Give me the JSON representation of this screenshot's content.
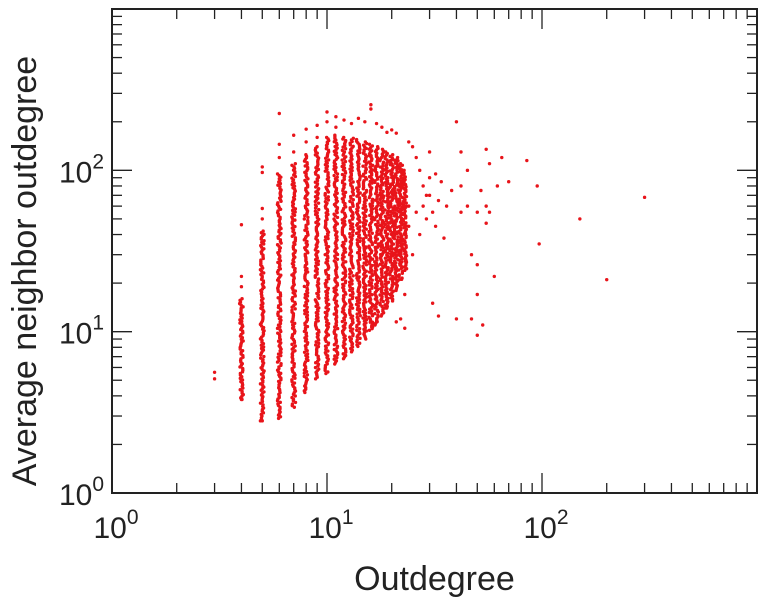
{
  "chart_data": {
    "type": "scatter",
    "title": "",
    "xlabel": "Outdegree",
    "ylabel": "Average neighbor outdegree",
    "x_scale": "log",
    "y_scale": "log",
    "xlim": [
      1,
      1000
    ],
    "ylim": [
      1,
      1000
    ],
    "grid": false,
    "marker_color": "#e8141a",
    "x_ticks": [
      {
        "value": 1,
        "base": "10",
        "exp": "0"
      },
      {
        "value": 10,
        "base": "10",
        "exp": "1"
      },
      {
        "value": 100,
        "base": "10",
        "exp": "2"
      }
    ],
    "y_ticks": [
      {
        "value": 1,
        "base": "10",
        "exp": "0"
      },
      {
        "value": 10,
        "base": "10",
        "exp": "1"
      },
      {
        "value": 100,
        "base": "10",
        "exp": "2"
      }
    ],
    "columns": [
      {
        "x": 4,
        "ymin": 3.8,
        "ymax": 16
      },
      {
        "x": 5,
        "ymin": 2.8,
        "ymax": 42
      },
      {
        "x": 6,
        "ymin": 2.9,
        "ymax": 95
      },
      {
        "x": 7,
        "ymin": 3.4,
        "ymax": 110
      },
      {
        "x": 8,
        "ymin": 4.2,
        "ymax": 125
      },
      {
        "x": 9,
        "ymin": 5.1,
        "ymax": 140
      },
      {
        "x": 10,
        "ymin": 5.5,
        "ymax": 160
      },
      {
        "x": 11,
        "ymin": 6.3,
        "ymax": 165
      },
      {
        "x": 12,
        "ymin": 6.8,
        "ymax": 160
      },
      {
        "x": 13,
        "ymin": 7.5,
        "ymax": 158
      },
      {
        "x": 14,
        "ymin": 8.1,
        "ymax": 155
      },
      {
        "x": 15,
        "ymin": 9.0,
        "ymax": 150
      },
      {
        "x": 16,
        "ymin": 10.2,
        "ymax": 145
      },
      {
        "x": 17,
        "ymin": 11.0,
        "ymax": 140
      },
      {
        "x": 18,
        "ymin": 12.5,
        "ymax": 135
      },
      {
        "x": 19,
        "ymin": 14.0,
        "ymax": 130
      },
      {
        "x": 20,
        "ymin": 15.5,
        "ymax": 125
      },
      {
        "x": 21,
        "ymin": 18.0,
        "ymax": 120
      },
      {
        "x": 22,
        "ymin": 21.0,
        "ymax": 110
      },
      {
        "x": 23,
        "ymin": 24.0,
        "ymax": 100
      }
    ],
    "points": [
      {
        "x": 3,
        "y": 5.6
      },
      {
        "x": 3,
        "y": 5.1
      },
      {
        "x": 4,
        "y": 46
      },
      {
        "x": 4,
        "y": 22
      },
      {
        "x": 4,
        "y": 19
      },
      {
        "x": 4,
        "y": 3.8
      },
      {
        "x": 5,
        "y": 105
      },
      {
        "x": 5,
        "y": 97
      },
      {
        "x": 5,
        "y": 58
      },
      {
        "x": 5,
        "y": 50
      },
      {
        "x": 5,
        "y": 2.8
      },
      {
        "x": 6,
        "y": 225
      },
      {
        "x": 6,
        "y": 145
      },
      {
        "x": 6,
        "y": 120
      },
      {
        "x": 6,
        "y": 3.0
      },
      {
        "x": 7,
        "y": 165
      },
      {
        "x": 7,
        "y": 130
      },
      {
        "x": 8,
        "y": 180
      },
      {
        "x": 8,
        "y": 150
      },
      {
        "x": 9,
        "y": 190
      },
      {
        "x": 9,
        "y": 160
      },
      {
        "x": 10,
        "y": 230
      },
      {
        "x": 10,
        "y": 200
      },
      {
        "x": 11,
        "y": 215
      },
      {
        "x": 11,
        "y": 185
      },
      {
        "x": 12,
        "y": 205
      },
      {
        "x": 13,
        "y": 195
      },
      {
        "x": 14,
        "y": 210
      },
      {
        "x": 15,
        "y": 200
      },
      {
        "x": 16,
        "y": 255
      },
      {
        "x": 16,
        "y": 240
      },
      {
        "x": 17,
        "y": 195
      },
      {
        "x": 18,
        "y": 185
      },
      {
        "x": 19,
        "y": 172
      },
      {
        "x": 20,
        "y": 178
      },
      {
        "x": 21,
        "y": 170
      },
      {
        "x": 21,
        "y": 11.5
      },
      {
        "x": 22,
        "y": 12
      },
      {
        "x": 23,
        "y": 10.5
      },
      {
        "x": 23,
        "y": 17
      },
      {
        "x": 24,
        "y": 150
      },
      {
        "x": 24,
        "y": 60
      },
      {
        "x": 24,
        "y": 45
      },
      {
        "x": 25,
        "y": 140
      },
      {
        "x": 25,
        "y": 30
      },
      {
        "x": 26,
        "y": 120
      },
      {
        "x": 26,
        "y": 55
      },
      {
        "x": 27,
        "y": 100
      },
      {
        "x": 27,
        "y": 40
      },
      {
        "x": 28,
        "y": 80
      },
      {
        "x": 28,
        "y": 60
      },
      {
        "x": 29,
        "y": 70
      },
      {
        "x": 29,
        "y": 50
      },
      {
        "x": 30,
        "y": 130
      },
      {
        "x": 30,
        "y": 90
      },
      {
        "x": 30,
        "y": 70
      },
      {
        "x": 31,
        "y": 55
      },
      {
        "x": 31,
        "y": 15
      },
      {
        "x": 32,
        "y": 95
      },
      {
        "x": 32,
        "y": 45
      },
      {
        "x": 33,
        "y": 65
      },
      {
        "x": 33,
        "y": 12.5
      },
      {
        "x": 34,
        "y": 85
      },
      {
        "x": 35,
        "y": 38
      },
      {
        "x": 36,
        "y": 60
      },
      {
        "x": 38,
        "y": 75
      },
      {
        "x": 40,
        "y": 200
      },
      {
        "x": 40,
        "y": 12
      },
      {
        "x": 42,
        "y": 130
      },
      {
        "x": 42,
        "y": 80
      },
      {
        "x": 42,
        "y": 55
      },
      {
        "x": 45,
        "y": 100
      },
      {
        "x": 45,
        "y": 60
      },
      {
        "x": 47,
        "y": 30
      },
      {
        "x": 47,
        "y": 12
      },
      {
        "x": 50,
        "y": 55
      },
      {
        "x": 50,
        "y": 26
      },
      {
        "x": 50,
        "y": 17
      },
      {
        "x": 50,
        "y": 9.5
      },
      {
        "x": 52,
        "y": 75
      },
      {
        "x": 53,
        "y": 11
      },
      {
        "x": 55,
        "y": 135
      },
      {
        "x": 55,
        "y": 60
      },
      {
        "x": 55,
        "y": 47
      },
      {
        "x": 57,
        "y": 110
      },
      {
        "x": 57,
        "y": 55
      },
      {
        "x": 60,
        "y": 22
      },
      {
        "x": 62,
        "y": 80
      },
      {
        "x": 65,
        "y": 120
      },
      {
        "x": 70,
        "y": 85
      },
      {
        "x": 85,
        "y": 115
      },
      {
        "x": 95,
        "y": 80
      },
      {
        "x": 97,
        "y": 35
      },
      {
        "x": 150,
        "y": 50
      },
      {
        "x": 200,
        "y": 21
      },
      {
        "x": 300,
        "y": 68
      }
    ]
  }
}
